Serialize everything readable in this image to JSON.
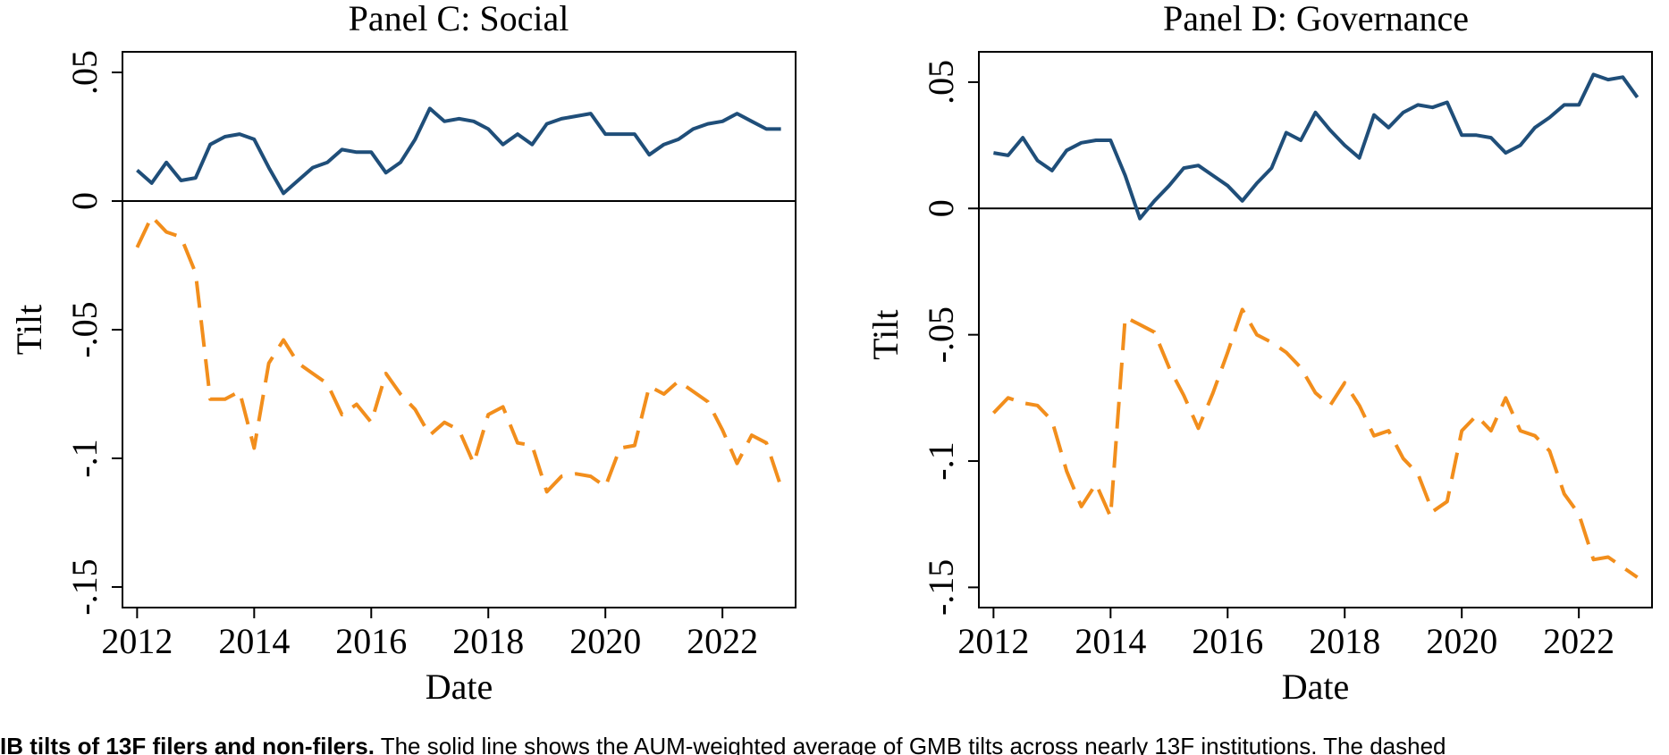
{
  "caption": {
    "bold": "IB tilts of 13F filers and non-filers.",
    "text": "The solid line shows the AUM-weighted average of GMB tilts across nearly 13F institutions. The dashed"
  },
  "chart_data": [
    {
      "type": "line",
      "title": "Panel C: Social",
      "xlabel": "Date",
      "ylabel": "Tilt",
      "xlim": [
        2011.75,
        2023.25
      ],
      "ylim": [
        -0.158,
        0.058
      ],
      "xticks": [
        2012,
        2014,
        2016,
        2018,
        2020,
        2022
      ],
      "xtick_labels": [
        "2012",
        "2014",
        "2016",
        "2018",
        "2020",
        "2022"
      ],
      "yticks": [
        0.05,
        0,
        -0.05,
        -0.1,
        -0.15
      ],
      "ytick_labels": [
        ".05",
        "0",
        "-.05",
        "-.1",
        "-.15"
      ],
      "reference_line": 0,
      "grid": false,
      "series": [
        {
          "style": "solid",
          "color": "#1f4e79",
          "x": [
            2012.0,
            2012.25,
            2012.5,
            2012.75,
            2013.0,
            2013.25,
            2013.5,
            2013.75,
            2014.0,
            2014.25,
            2014.5,
            2014.75,
            2015.0,
            2015.25,
            2015.5,
            2015.75,
            2016.0,
            2016.25,
            2016.5,
            2016.75,
            2017.0,
            2017.25,
            2017.5,
            2017.75,
            2018.0,
            2018.25,
            2018.5,
            2018.75,
            2019.0,
            2019.25,
            2019.5,
            2019.75,
            2020.0,
            2020.25,
            2020.5,
            2020.75,
            2021.0,
            2021.25,
            2021.5,
            2021.75,
            2022.0,
            2022.25,
            2022.5,
            2022.75,
            2023.0
          ],
          "y": [
            0.012,
            0.007,
            0.015,
            0.008,
            0.009,
            0.022,
            0.025,
            0.026,
            0.024,
            0.013,
            0.003,
            0.008,
            0.013,
            0.015,
            0.02,
            0.019,
            0.019,
            0.011,
            0.015,
            0.024,
            0.036,
            0.031,
            0.032,
            0.031,
            0.028,
            0.022,
            0.026,
            0.022,
            0.03,
            0.032,
            0.033,
            0.034,
            0.026,
            0.026,
            0.026,
            0.018,
            0.022,
            0.024,
            0.028,
            0.03,
            0.031,
            0.034,
            0.031,
            0.028,
            0.028
          ]
        },
        {
          "style": "dashed",
          "color": "#f28e1c",
          "x": [
            2012.0,
            2012.25,
            2012.5,
            2012.75,
            2013.0,
            2013.25,
            2013.5,
            2013.75,
            2014.0,
            2014.25,
            2014.5,
            2014.75,
            2015.0,
            2015.25,
            2015.5,
            2015.75,
            2016.0,
            2016.25,
            2016.5,
            2016.75,
            2017.0,
            2017.25,
            2017.5,
            2017.75,
            2018.0,
            2018.25,
            2018.5,
            2018.75,
            2019.0,
            2019.25,
            2019.5,
            2019.75,
            2020.0,
            2020.25,
            2020.5,
            2020.75,
            2021.0,
            2021.25,
            2021.5,
            2021.75,
            2022.0,
            2022.25,
            2022.5,
            2022.75,
            2023.0
          ],
          "y": [
            -0.018,
            -0.006,
            -0.012,
            -0.014,
            -0.028,
            -0.077,
            -0.077,
            -0.074,
            -0.096,
            -0.063,
            -0.054,
            -0.063,
            -0.067,
            -0.071,
            -0.083,
            -0.079,
            -0.086,
            -0.067,
            -0.075,
            -0.081,
            -0.091,
            -0.086,
            -0.089,
            -0.102,
            -0.083,
            -0.08,
            -0.094,
            -0.095,
            -0.113,
            -0.107,
            -0.106,
            -0.107,
            -0.111,
            -0.096,
            -0.095,
            -0.072,
            -0.075,
            -0.07,
            -0.074,
            -0.078,
            -0.089,
            -0.102,
            -0.091,
            -0.094,
            -0.111
          ]
        }
      ]
    },
    {
      "type": "line",
      "title": "Panel D: Governance",
      "xlabel": "Date",
      "ylabel": "Tilt",
      "xlim": [
        2011.75,
        2023.25
      ],
      "ylim": [
        -0.158,
        0.062
      ],
      "xticks": [
        2012,
        2014,
        2016,
        2018,
        2020,
        2022
      ],
      "xtick_labels": [
        "2012",
        "2014",
        "2016",
        "2018",
        "2020",
        "2022"
      ],
      "yticks": [
        0.05,
        0,
        -0.05,
        -0.1,
        -0.15
      ],
      "ytick_labels": [
        ".05",
        "0",
        "-.05",
        "-.1",
        "-.15"
      ],
      "reference_line": 0,
      "grid": false,
      "series": [
        {
          "style": "solid",
          "color": "#1f4e79",
          "x": [
            2012.0,
            2012.25,
            2012.5,
            2012.75,
            2013.0,
            2013.25,
            2013.5,
            2013.75,
            2014.0,
            2014.25,
            2014.5,
            2014.75,
            2015.0,
            2015.25,
            2015.5,
            2015.75,
            2016.0,
            2016.25,
            2016.5,
            2016.75,
            2017.0,
            2017.25,
            2017.5,
            2017.75,
            2018.0,
            2018.25,
            2018.5,
            2018.75,
            2019.0,
            2019.25,
            2019.5,
            2019.75,
            2020.0,
            2020.25,
            2020.5,
            2020.75,
            2021.0,
            2021.25,
            2021.5,
            2021.75,
            2022.0,
            2022.25,
            2022.5,
            2022.75,
            2023.0
          ],
          "y": [
            0.022,
            0.021,
            0.028,
            0.019,
            0.015,
            0.023,
            0.026,
            0.027,
            0.027,
            0.013,
            -0.004,
            0.003,
            0.009,
            0.016,
            0.017,
            0.013,
            0.009,
            0.003,
            0.01,
            0.016,
            0.03,
            0.027,
            0.038,
            0.031,
            0.025,
            0.02,
            0.037,
            0.032,
            0.038,
            0.041,
            0.04,
            0.042,
            0.029,
            0.029,
            0.028,
            0.022,
            0.025,
            0.032,
            0.036,
            0.041,
            0.041,
            0.053,
            0.051,
            0.052,
            0.044
          ]
        },
        {
          "style": "dashed",
          "color": "#f28e1c",
          "x": [
            2012.0,
            2012.25,
            2012.5,
            2012.75,
            2013.0,
            2013.25,
            2013.5,
            2013.75,
            2014.0,
            2014.25,
            2014.5,
            2014.75,
            2015.0,
            2015.25,
            2015.5,
            2015.75,
            2016.0,
            2016.25,
            2016.5,
            2016.75,
            2017.0,
            2017.25,
            2017.5,
            2017.75,
            2018.0,
            2018.25,
            2018.5,
            2018.75,
            2019.0,
            2019.25,
            2019.5,
            2019.75,
            2020.0,
            2020.25,
            2020.5,
            2020.75,
            2021.0,
            2021.25,
            2021.5,
            2021.75,
            2022.0,
            2022.25,
            2022.5,
            2022.75,
            2023.0
          ],
          "y": [
            -0.081,
            -0.075,
            -0.077,
            -0.078,
            -0.084,
            -0.104,
            -0.118,
            -0.109,
            -0.122,
            -0.043,
            -0.046,
            -0.049,
            -0.063,
            -0.074,
            -0.087,
            -0.073,
            -0.057,
            -0.04,
            -0.05,
            -0.053,
            -0.057,
            -0.063,
            -0.073,
            -0.078,
            -0.069,
            -0.078,
            -0.09,
            -0.088,
            -0.099,
            -0.105,
            -0.12,
            -0.116,
            -0.088,
            -0.082,
            -0.088,
            -0.075,
            -0.088,
            -0.09,
            -0.096,
            -0.113,
            -0.121,
            -0.139,
            -0.138,
            -0.142,
            -0.146
          ]
        }
      ]
    }
  ]
}
